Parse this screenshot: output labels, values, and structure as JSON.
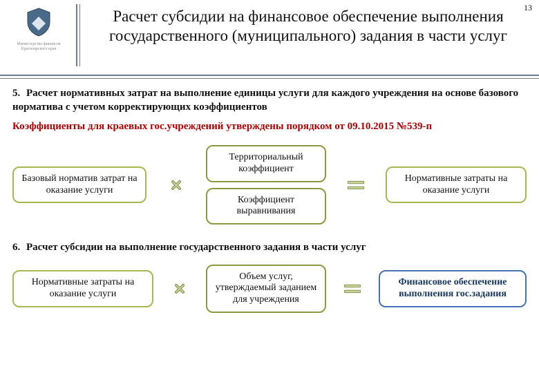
{
  "page_number": "13",
  "crest_caption": "Министерство финансов Красноярского края",
  "title": "Расчет субсидии на финансовое обеспечение выполнения государственного (муниципального) задания в части услуг",
  "item5_num": "5.",
  "item5_text": "Расчет нормативных затрат на выполнение единицы услуги для каждого учреждения на основе базового норматива с учетом корректирующих коэффициентов",
  "red_text": "Коэффициенты для краевых гос.учреждений утверждены порядком от 09.10.2015 №539-п",
  "formula1": {
    "left": "Базовый норматив затрат на оказание услуги",
    "mid_top": "Территориальный коэффициент",
    "mid_bottom": "Коэффициент выравнивания",
    "right": "Нормативные затраты на оказание услуги"
  },
  "item6_num": "6.",
  "item6_text": "Расчет субсидии на выполнение государственного задания в части услуг",
  "formula2": {
    "left": "Нормативные затраты на оказание услуги",
    "mid": "Объем услуг, утверждаемый заданием для учреждения",
    "right": "Финансовое обеспечение выполнения гос.задания"
  },
  "colors": {
    "box_green": "#a6b84f",
    "box_olive": "#8a9a3f",
    "box_blue": "#4672b4",
    "blue_text": "#17365d",
    "multiply": "#7e8d4a",
    "equals": "#7e8d4a"
  }
}
